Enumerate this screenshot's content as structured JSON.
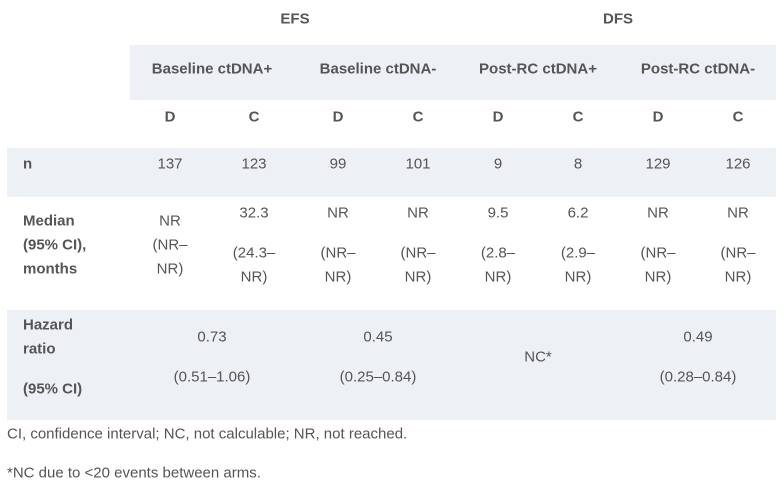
{
  "header": {
    "groups": [
      "EFS",
      "DFS"
    ],
    "subgroups": [
      "Baseline ctDNA+",
      "Baseline ctDNA-",
      "Post-RC ctDNA+",
      "Post-RC ctDNA-"
    ],
    "arms": [
      "D",
      "C",
      "D",
      "C",
      "D",
      "C",
      "D",
      "C"
    ]
  },
  "rows": [
    {
      "label": [
        "n"
      ],
      "cells": [
        "137",
        "123",
        "99",
        "101",
        "9",
        "8",
        "129",
        "126"
      ]
    },
    {
      "label": [
        "Median",
        "(95% CI),",
        "months"
      ],
      "cells": [
        [
          "NR",
          "(NR–",
          "NR)"
        ],
        [
          "32.3",
          "(24.3–",
          "NR)"
        ],
        [
          "NR",
          "(NR–",
          "NR)"
        ],
        [
          "NR",
          "(NR–",
          "NR)"
        ],
        [
          "9.5",
          "(2.8–",
          "NR)"
        ],
        [
          "6.2",
          "(2.9–",
          "NR)"
        ],
        [
          "NR",
          "(NR–",
          "NR)"
        ],
        [
          "NR",
          "(NR–",
          "NR)"
        ]
      ]
    },
    {
      "label": [
        "Hazard",
        "ratio",
        "(95% CI)"
      ],
      "cells": [
        [
          "0.73",
          "(0.51–1.06)"
        ],
        [
          "0.45",
          "(0.25–0.84)"
        ],
        [
          "NC*"
        ],
        [
          "0.49",
          "(0.28–0.84)"
        ]
      ]
    }
  ],
  "footnotes": [
    "CI, confidence interval; NC, not calculable; NR, not reached.",
    "*NC due to <20 events between arms."
  ]
}
